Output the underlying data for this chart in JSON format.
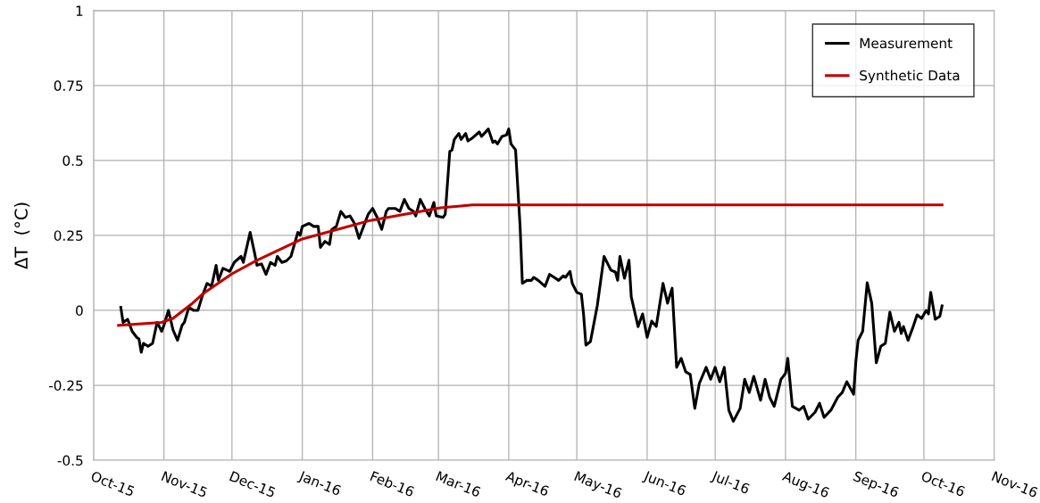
{
  "chart_data": {
    "type": "line",
    "ylabel": "ΔT  (°C)",
    "xlim": [
      "2015-10-01",
      "2016-11-01"
    ],
    "xticks": [
      {
        "value": "2015-10-01",
        "label": "Oct-15"
      },
      {
        "value": "2015-11-01",
        "label": "Nov-15"
      },
      {
        "value": "2015-12-01",
        "label": "Dec-15"
      },
      {
        "value": "2016-01-01",
        "label": "Jan-16"
      },
      {
        "value": "2016-02-01",
        "label": "Feb-16"
      },
      {
        "value": "2016-03-01",
        "label": "Mar-16"
      },
      {
        "value": "2016-04-01",
        "label": "Apr-16"
      },
      {
        "value": "2016-05-01",
        "label": "May-16"
      },
      {
        "value": "2016-06-01",
        "label": "Jun-16"
      },
      {
        "value": "2016-07-01",
        "label": "Jul-16"
      },
      {
        "value": "2016-08-01",
        "label": "Aug-16"
      },
      {
        "value": "2016-09-01",
        "label": "Sep-16"
      },
      {
        "value": "2016-10-01",
        "label": "Oct-16"
      },
      {
        "value": "2016-11-01",
        "label": "Nov-16"
      }
    ],
    "ylim": [
      -0.5,
      1
    ],
    "yticks": [
      -0.5,
      -0.25,
      0,
      0.25,
      0.5,
      0.75,
      1
    ],
    "grid": true,
    "legend": "top right",
    "marker": "none",
    "line_style": "solid",
    "series": [
      {
        "name": "Measurement",
        "color": "#000000",
        "x": [
          "2015-10-13",
          "2015-10-14",
          "2015-10-16",
          "2015-10-18",
          "2015-10-20",
          "2015-10-21",
          "2015-10-22",
          "2015-10-23",
          "2015-10-25",
          "2015-10-27",
          "2015-10-29",
          "2015-10-31",
          "2015-11-01",
          "2015-11-03",
          "2015-11-05",
          "2015-11-07",
          "2015-11-09",
          "2015-11-10",
          "2015-11-12",
          "2015-11-14",
          "2015-11-16",
          "2015-11-18",
          "2015-11-20",
          "2015-11-22",
          "2015-11-24",
          "2015-11-25",
          "2015-11-27",
          "2015-11-30",
          "2015-12-02",
          "2015-12-05",
          "2015-12-06",
          "2015-12-09",
          "2015-12-11",
          "2015-12-12",
          "2015-12-14",
          "2015-12-16",
          "2015-12-18",
          "2015-12-20",
          "2015-12-21",
          "2015-12-23",
          "2015-12-25",
          "2015-12-27",
          "2015-12-30",
          "2015-12-31",
          "2016-01-01",
          "2016-01-04",
          "2016-01-06",
          "2016-01-08",
          "2016-01-09",
          "2016-01-11",
          "2016-01-13",
          "2016-01-14",
          "2016-01-16",
          "2016-01-18",
          "2016-01-20",
          "2016-01-22",
          "2016-01-24",
          "2016-01-26",
          "2016-01-28",
          "2016-01-30",
          "2016-02-01",
          "2016-02-03",
          "2016-02-05",
          "2016-02-07",
          "2016-02-08",
          "2016-02-11",
          "2016-02-13",
          "2016-02-15",
          "2016-02-17",
          "2016-02-19",
          "2016-02-20",
          "2016-02-22",
          "2016-02-24",
          "2016-02-26",
          "2016-02-28",
          "2016-02-29",
          "2016-03-03",
          "2016-03-04",
          "2016-03-06",
          "2016-03-07",
          "2016-03-08",
          "2016-03-10",
          "2016-03-11",
          "2016-03-13",
          "2016-03-14",
          "2016-03-16",
          "2016-03-19",
          "2016-03-20",
          "2016-03-23",
          "2016-03-25",
          "2016-03-26",
          "2016-03-27",
          "2016-03-29",
          "2016-03-31",
          "2016-04-01",
          "2016-04-02",
          "2016-04-04",
          "2016-04-06",
          "2016-04-07",
          "2016-04-09",
          "2016-04-11",
          "2016-04-12",
          "2016-04-14",
          "2016-04-17",
          "2016-04-19",
          "2016-04-21",
          "2016-04-23",
          "2016-04-25",
          "2016-04-26",
          "2016-04-28",
          "2016-04-29",
          "2016-05-01",
          "2016-05-03",
          "2016-05-04",
          "2016-05-05",
          "2016-05-07",
          "2016-05-08",
          "2016-05-10",
          "2016-05-13",
          "2016-05-15",
          "2016-05-16",
          "2016-05-18",
          "2016-05-19",
          "2016-05-20",
          "2016-05-22",
          "2016-05-24",
          "2016-05-25",
          "2016-05-28",
          "2016-05-30",
          "2016-06-01",
          "2016-06-03",
          "2016-06-05",
          "2016-06-08",
          "2016-06-10",
          "2016-06-12",
          "2016-06-14",
          "2016-06-16",
          "2016-06-18",
          "2016-06-20",
          "2016-06-22",
          "2016-06-24",
          "2016-06-27",
          "2016-06-29",
          "2016-07-01",
          "2016-07-03",
          "2016-07-05",
          "2016-07-07",
          "2016-07-09",
          "2016-07-12",
          "2016-07-14",
          "2016-07-16",
          "2016-07-18",
          "2016-07-21",
          "2016-07-23",
          "2016-07-25",
          "2016-07-27",
          "2016-07-30",
          "2016-08-01",
          "2016-08-02",
          "2016-08-04",
          "2016-08-07",
          "2016-08-09",
          "2016-08-11",
          "2016-08-14",
          "2016-08-16",
          "2016-08-18",
          "2016-08-21",
          "2016-08-24",
          "2016-08-26",
          "2016-08-28",
          "2016-08-31",
          "2016-09-01",
          "2016-09-02",
          "2016-09-04",
          "2016-09-06",
          "2016-09-08",
          "2016-09-10",
          "2016-09-12",
          "2016-09-14",
          "2016-09-16",
          "2016-09-18",
          "2016-09-20",
          "2016-09-21",
          "2016-09-22",
          "2016-09-24",
          "2016-09-26",
          "2016-09-28",
          "2016-09-30",
          "2016-10-02",
          "2016-10-03",
          "2016-10-04",
          "2016-10-06",
          "2016-10-08",
          "2016-10-09"
        ],
        "values": [
          0.01,
          -0.04,
          -0.03,
          -0.07,
          -0.09,
          -0.095,
          -0.14,
          -0.11,
          -0.12,
          -0.11,
          -0.04,
          -0.07,
          -0.05,
          0,
          -0.065,
          -0.1,
          -0.05,
          -0.04,
          0.01,
          0,
          0,
          0.05,
          0.09,
          0.08,
          0.15,
          0.1,
          0.14,
          0.13,
          0.16,
          0.18,
          0.16,
          0.26,
          0.19,
          0.15,
          0.155,
          0.12,
          0.16,
          0.15,
          0.18,
          0.16,
          0.165,
          0.18,
          0.26,
          0.25,
          0.28,
          0.29,
          0.28,
          0.28,
          0.21,
          0.23,
          0.22,
          0.27,
          0.28,
          0.33,
          0.31,
          0.315,
          0.29,
          0.24,
          0.28,
          0.32,
          0.34,
          0.31,
          0.27,
          0.33,
          0.34,
          0.34,
          0.33,
          0.37,
          0.34,
          0.33,
          0.315,
          0.37,
          0.34,
          0.315,
          0.36,
          0.315,
          0.31,
          0.32,
          0.53,
          0.535,
          0.57,
          0.59,
          0.57,
          0.59,
          0.565,
          0.575,
          0.595,
          0.58,
          0.605,
          0.56,
          0.565,
          0.555,
          0.58,
          0.585,
          0.605,
          0.555,
          0.535,
          0.28,
          0.09,
          0.1,
          0.1,
          0.11,
          0.1,
          0.08,
          0.12,
          0.11,
          0.1,
          0.115,
          0.11,
          0.13,
          0.09,
          0.06,
          0.054,
          -0.015,
          -0.116,
          -0.104,
          -0.065,
          0.015,
          0.18,
          0.15,
          0.134,
          0.128,
          0.1,
          0.18,
          0.107,
          0.167,
          0.045,
          -0.054,
          -0.012,
          -0.09,
          -0.036,
          -0.054,
          0.09,
          0.024,
          0.074,
          -0.19,
          -0.16,
          -0.205,
          -0.214,
          -0.327,
          -0.244,
          -0.19,
          -0.23,
          -0.19,
          -0.238,
          -0.19,
          -0.333,
          -0.37,
          -0.327,
          -0.23,
          -0.274,
          -0.22,
          -0.3,
          -0.23,
          -0.29,
          -0.32,
          -0.23,
          -0.21,
          -0.16,
          -0.32,
          -0.333,
          -0.32,
          -0.363,
          -0.34,
          -0.31,
          -0.357,
          -0.333,
          -0.29,
          -0.274,
          -0.238,
          -0.28,
          -0.17,
          -0.1,
          -0.07,
          0.092,
          0.024,
          -0.175,
          -0.12,
          -0.11,
          -0.006,
          -0.07,
          -0.04,
          -0.077,
          -0.054,
          -0.1,
          -0.06,
          -0.015,
          -0.027,
          0,
          -0.012,
          0.06,
          -0.03,
          -0.02,
          0.015
        ]
      },
      {
        "name": "Synthetic Data",
        "color": "#c00000",
        "x": [
          "2015-10-12",
          "2015-10-31",
          "2015-11-05",
          "2015-11-13",
          "2015-11-18",
          "2015-12-01",
          "2015-12-12",
          "2016-01-01",
          "2016-01-31",
          "2016-03-02",
          "2016-03-16",
          "2016-10-09"
        ],
        "values": [
          -0.05,
          -0.04,
          -0.027,
          0.02,
          0.054,
          0.122,
          0.167,
          0.238,
          0.3,
          0.342,
          0.352,
          0.352
        ]
      }
    ]
  }
}
